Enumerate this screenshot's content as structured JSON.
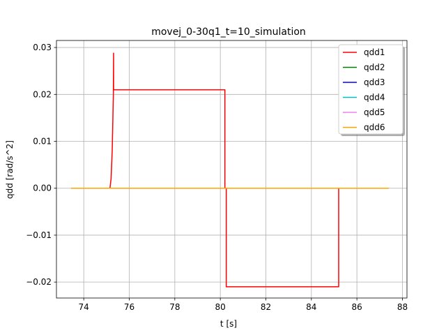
{
  "chart_data": {
    "type": "line",
    "title": "movej_0-30q1_t=10_simulation",
    "xlabel": "t [s]",
    "ylabel": "qdd [rad/s^2]",
    "xlim": [
      72.8,
      88.2
    ],
    "ylim": [
      -0.0234,
      0.0315
    ],
    "xticks": [
      74,
      76,
      78,
      80,
      82,
      84,
      86,
      88
    ],
    "yticks": [
      -0.02,
      -0.01,
      0.0,
      0.01,
      0.02,
      0.03
    ],
    "xtick_labels": [
      "74",
      "76",
      "78",
      "80",
      "82",
      "84",
      "86",
      "88"
    ],
    "ytick_labels": [
      "−0.02",
      "−0.01",
      "0.00",
      "0.01",
      "0.02",
      "0.03"
    ],
    "grid": true,
    "legend_position": "top-right",
    "series": [
      {
        "name": "qdd1",
        "color": "#ff0000",
        "x": [
          73.45,
          75.15,
          75.2,
          75.25,
          75.28,
          75.3,
          75.31,
          75.31,
          75.32,
          80.2,
          80.2,
          80.26,
          80.26,
          85.2,
          85.2,
          85.26,
          87.4
        ],
        "y": [
          0.0,
          0.0,
          0.002,
          0.008,
          0.015,
          0.02,
          0.0288,
          0.021,
          0.021,
          0.021,
          0.0,
          0.0,
          -0.021,
          -0.021,
          0.0,
          0.0,
          0.0
        ]
      },
      {
        "name": "qdd2",
        "color": "#008000",
        "x": [
          73.45,
          87.4
        ],
        "y": [
          0.0,
          0.0
        ]
      },
      {
        "name": "qdd3",
        "color": "#0000ff",
        "x": [
          73.45,
          87.4
        ],
        "y": [
          0.0,
          0.0
        ]
      },
      {
        "name": "qdd4",
        "color": "#00bfbf",
        "x": [
          73.45,
          87.4
        ],
        "y": [
          0.0,
          0.0
        ]
      },
      {
        "name": "qdd5",
        "color": "#ee82ee",
        "x": [
          73.45,
          87.4
        ],
        "y": [
          0.0,
          0.0
        ]
      },
      {
        "name": "qdd6",
        "color": "#ffa500",
        "x": [
          73.45,
          87.4
        ],
        "y": [
          0.0,
          0.0
        ]
      }
    ]
  }
}
